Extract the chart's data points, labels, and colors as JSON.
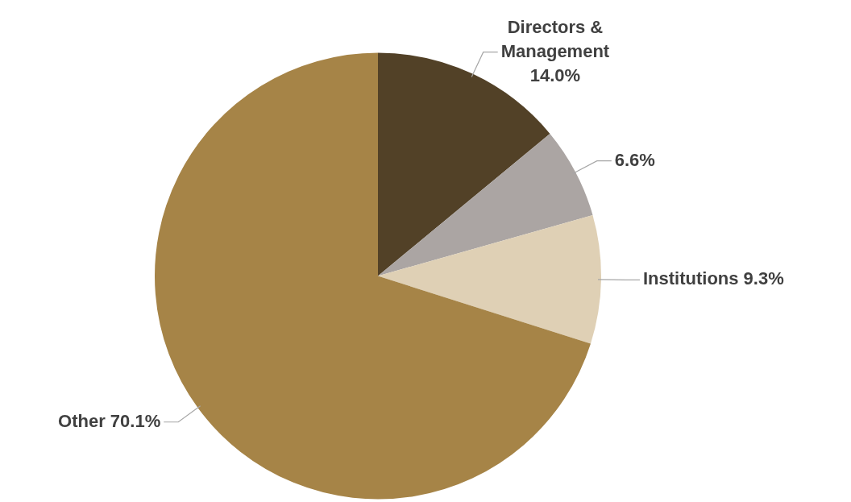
{
  "chart_data": {
    "type": "pie",
    "categories": [
      "Directors & Management",
      null,
      "Institutions",
      "Other"
    ],
    "values": [
      14.0,
      6.6,
      9.3,
      70.1
    ],
    "value_labels": [
      "14.0%",
      "6.6%",
      "9.3%",
      "70.1%"
    ],
    "colors": [
      "#524127",
      "#aba5a3",
      "#dfd0b5",
      "#a68447"
    ],
    "legend": false
  }
}
